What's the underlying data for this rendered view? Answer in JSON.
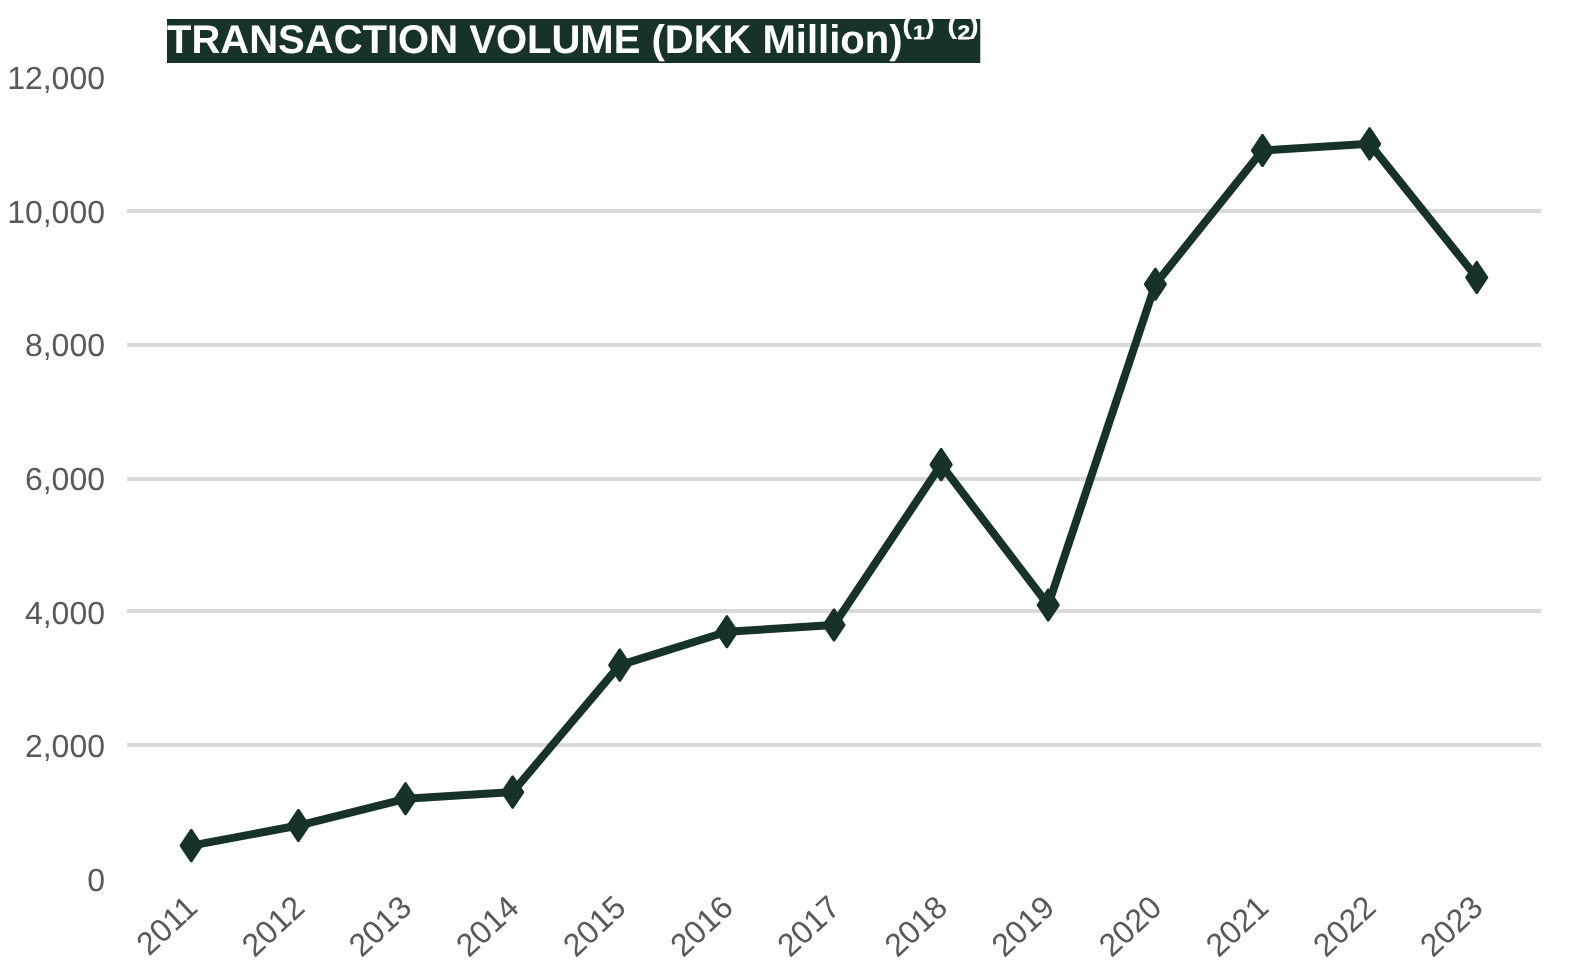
{
  "chart_data": {
    "type": "line",
    "title": "TRANSACTION VOLUME (DKK Million)⁽¹⁾ ⁽²⁾",
    "categories": [
      "2011",
      "2012",
      "2013",
      "2014",
      "2015",
      "2016",
      "2017",
      "2018",
      "2019",
      "2020",
      "2021",
      "2022",
      "2023"
    ],
    "series": [
      {
        "color": "#17322a",
        "values": [
          500,
          800,
          1200,
          1300,
          3200,
          3700,
          3800,
          6200,
          4100,
          8900,
          10900,
          11000,
          9000
        ]
      }
    ],
    "ylim": [
      0,
      12000
    ],
    "yticks": [
      {
        "value": 0,
        "label": "0"
      },
      {
        "value": 2000,
        "label": "2,000"
      },
      {
        "value": 4000,
        "label": "4,000"
      },
      {
        "value": 6000,
        "label": "6,000"
      },
      {
        "value": 8000,
        "label": "8,000"
      },
      {
        "value": 10000,
        "label": "10,000"
      },
      {
        "value": 12000,
        "label": "12,000"
      }
    ],
    "grid": "y",
    "marker": "diamond",
    "line_style": "solid"
  }
}
